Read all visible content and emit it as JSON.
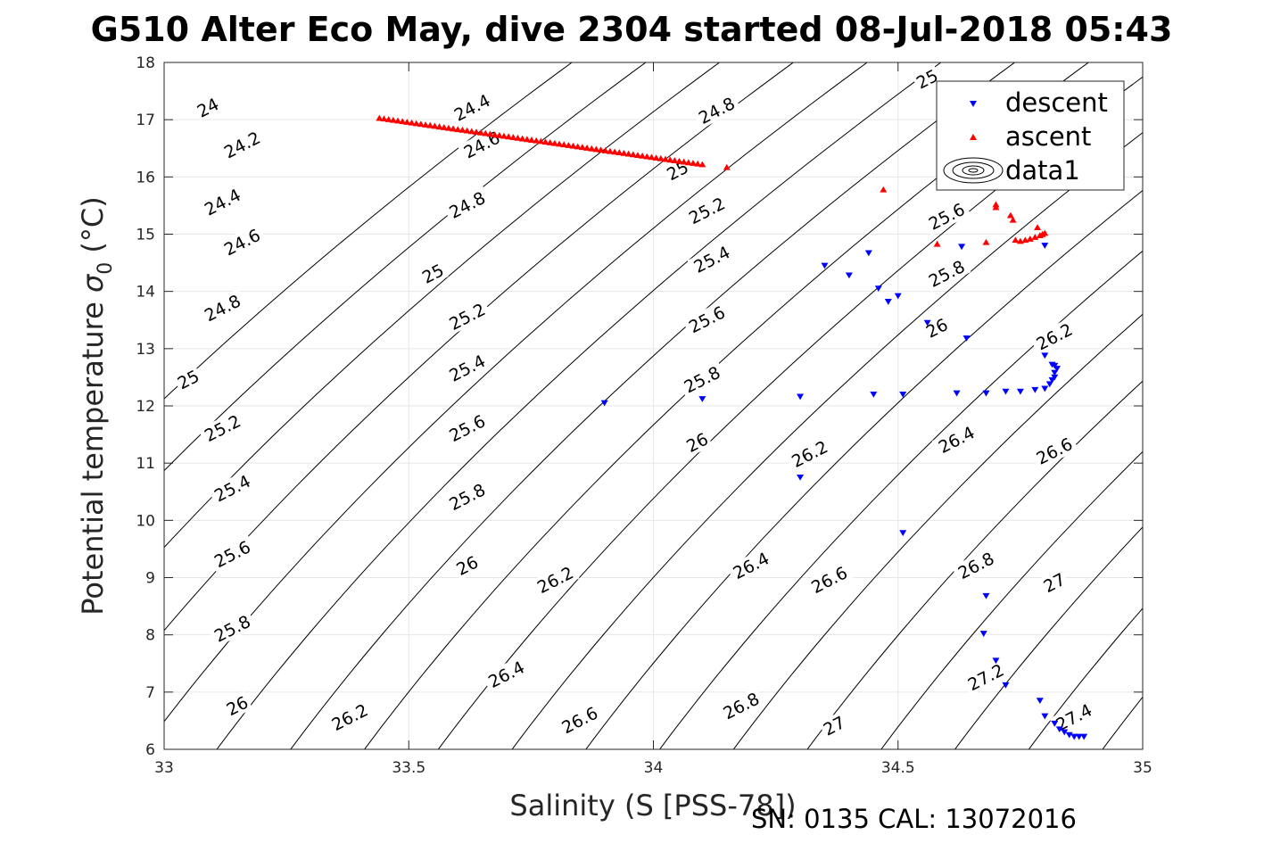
{
  "chart_data": {
    "type": "scatter",
    "title": "G510 Alter Eco May, dive 2304 started 08-Jul-2018 05:43",
    "xlabel": "Salinity (S [PSS-78])",
    "ylabel_main": "Potential temperature ",
    "ylabel_sigma": "σ",
    "ylabel_sub": "0",
    "ylabel_unit": " (°C)",
    "footnote": "SN: 0135  CAL: 13072016",
    "xlim": [
      33,
      35
    ],
    "ylim": [
      6,
      18
    ],
    "grid": true,
    "xticks": [
      "33",
      "33.5",
      "34",
      "34.5",
      "35"
    ],
    "yticks": [
      "6",
      "7",
      "8",
      "9",
      "10",
      "11",
      "12",
      "13",
      "14",
      "15",
      "16",
      "17",
      "18"
    ],
    "legend": {
      "placement": "top-right",
      "entries": [
        "descent",
        "ascent",
        "data1"
      ]
    },
    "colors": {
      "descent": "#0000ff",
      "ascent": "#ff0000",
      "contour": "#000000",
      "grid": "#e6e6e6"
    },
    "contour_levels": [
      "24",
      "24.2",
      "24.4",
      "24.6",
      "24.8",
      "25",
      "25.2",
      "25.4",
      "25.6",
      "25.8",
      "26",
      "26.2",
      "26.4",
      "26.6",
      "26.8",
      "27",
      "27.2",
      "27.4"
    ],
    "contour_labels": [
      {
        "text": "24",
        "x": 33.09,
        "y": 17.2
      },
      {
        "text": "24.2",
        "x": 33.16,
        "y": 16.55
      },
      {
        "text": "24.4",
        "x": 33.12,
        "y": 15.55
      },
      {
        "text": "24.6",
        "x": 33.16,
        "y": 14.85
      },
      {
        "text": "24.8",
        "x": 33.12,
        "y": 13.7
      },
      {
        "text": "25",
        "x": 33.05,
        "y": 12.45
      },
      {
        "text": "25.2",
        "x": 33.12,
        "y": 11.6
      },
      {
        "text": "25.4",
        "x": 33.14,
        "y": 10.55
      },
      {
        "text": "25.6",
        "x": 33.14,
        "y": 9.4
      },
      {
        "text": "25.8",
        "x": 33.14,
        "y": 8.1
      },
      {
        "text": "26",
        "x": 33.15,
        "y": 6.75
      },
      {
        "text": "24.4",
        "x": 33.63,
        "y": 17.2
      },
      {
        "text": "24.6",
        "x": 33.65,
        "y": 16.55
      },
      {
        "text": "24.8",
        "x": 33.62,
        "y": 15.5
      },
      {
        "text": "25",
        "x": 33.55,
        "y": 14.3
      },
      {
        "text": "25.2",
        "x": 33.62,
        "y": 13.55
      },
      {
        "text": "25.4",
        "x": 33.62,
        "y": 12.65
      },
      {
        "text": "25.6",
        "x": 33.62,
        "y": 11.6
      },
      {
        "text": "25.8",
        "x": 33.62,
        "y": 10.4
      },
      {
        "text": "26",
        "x": 33.62,
        "y": 9.2
      },
      {
        "text": "26.2",
        "x": 33.38,
        "y": 6.55
      },
      {
        "text": "24.8",
        "x": 34.13,
        "y": 17.15
      },
      {
        "text": "25",
        "x": 34.05,
        "y": 16.1
      },
      {
        "text": "25.2",
        "x": 34.11,
        "y": 15.4
      },
      {
        "text": "25.4",
        "x": 34.12,
        "y": 14.55
      },
      {
        "text": "25.6",
        "x": 34.11,
        "y": 13.5
      },
      {
        "text": "25.8",
        "x": 34.1,
        "y": 12.45
      },
      {
        "text": "26",
        "x": 34.09,
        "y": 11.35
      },
      {
        "text": "26.2",
        "x": 33.8,
        "y": 8.95
      },
      {
        "text": "26.4",
        "x": 33.7,
        "y": 7.3
      },
      {
        "text": "26.6",
        "x": 33.85,
        "y": 6.5
      },
      {
        "text": "26.4",
        "x": 34.2,
        "y": 9.2
      },
      {
        "text": "26.2",
        "x": 34.32,
        "y": 11.15
      },
      {
        "text": "26.6",
        "x": 34.36,
        "y": 8.95
      },
      {
        "text": "26.8",
        "x": 34.18,
        "y": 6.75
      },
      {
        "text": "27",
        "x": 34.37,
        "y": 6.4
      },
      {
        "text": "25",
        "x": 34.56,
        "y": 17.7
      },
      {
        "text": "25.6",
        "x": 34.6,
        "y": 15.3
      },
      {
        "text": "25.8",
        "x": 34.6,
        "y": 14.3
      },
      {
        "text": "26",
        "x": 34.58,
        "y": 13.35
      },
      {
        "text": "26.2",
        "x": 34.82,
        "y": 13.2
      },
      {
        "text": "26.4",
        "x": 34.62,
        "y": 11.4
      },
      {
        "text": "26.6",
        "x": 34.82,
        "y": 11.2
      },
      {
        "text": "26.8",
        "x": 34.66,
        "y": 9.2
      },
      {
        "text": "27",
        "x": 34.82,
        "y": 8.9
      },
      {
        "text": "27.2",
        "x": 34.68,
        "y": 7.25
      },
      {
        "text": "27.4",
        "x": 34.86,
        "y": 6.55
      }
    ],
    "series": [
      {
        "name": "descent",
        "marker": "down-triangle",
        "color": "#0000ff",
        "points": [
          [
            33.9,
            12.05
          ],
          [
            34.1,
            12.12
          ],
          [
            34.3,
            12.16
          ],
          [
            34.3,
            10.75
          ],
          [
            34.35,
            14.45
          ],
          [
            34.4,
            14.28
          ],
          [
            34.44,
            14.67
          ],
          [
            34.45,
            12.2
          ],
          [
            34.46,
            14.05
          ],
          [
            34.48,
            13.82
          ],
          [
            34.5,
            13.92
          ],
          [
            34.51,
            12.2
          ],
          [
            34.51,
            9.78
          ],
          [
            34.56,
            13.45
          ],
          [
            34.62,
            12.22
          ],
          [
            34.63,
            14.78
          ],
          [
            34.64,
            13.18
          ],
          [
            34.68,
            12.22
          ],
          [
            34.72,
            12.25
          ],
          [
            34.75,
            12.25
          ],
          [
            34.78,
            12.28
          ],
          [
            34.8,
            12.3
          ],
          [
            34.8,
            14.8
          ],
          [
            34.81,
            12.38
          ],
          [
            34.815,
            12.45
          ],
          [
            34.82,
            12.5
          ],
          [
            34.82,
            12.58
          ],
          [
            34.825,
            12.65
          ],
          [
            34.82,
            12.7
          ],
          [
            34.815,
            12.72
          ],
          [
            34.8,
            12.88
          ],
          [
            34.68,
            8.68
          ],
          [
            34.675,
            8.02
          ],
          [
            34.7,
            7.55
          ],
          [
            34.72,
            7.12
          ],
          [
            34.79,
            6.85
          ],
          [
            34.8,
            6.58
          ],
          [
            34.82,
            6.45
          ],
          [
            34.83,
            6.35
          ],
          [
            34.84,
            6.3
          ],
          [
            34.85,
            6.25
          ],
          [
            34.86,
            6.22
          ],
          [
            34.87,
            6.22
          ],
          [
            34.88,
            6.22
          ]
        ]
      },
      {
        "name": "ascent",
        "marker": "up-triangle",
        "color": "#ff0000",
        "line_from": [
          33.44,
          17.03
        ],
        "line_to": [
          34.1,
          16.22
        ],
        "points": [
          [
            34.15,
            16.17
          ],
          [
            34.47,
            15.78
          ],
          [
            34.58,
            14.83
          ],
          [
            34.68,
            14.86
          ],
          [
            34.7,
            15.47
          ],
          [
            34.7,
            15.52
          ],
          [
            34.73,
            15.33
          ],
          [
            34.735,
            15.25
          ],
          [
            34.74,
            14.9
          ],
          [
            34.75,
            14.88
          ],
          [
            34.76,
            14.9
          ],
          [
            34.77,
            14.92
          ],
          [
            34.78,
            14.95
          ],
          [
            34.785,
            15.12
          ],
          [
            34.79,
            14.98
          ],
          [
            34.8,
            15.02
          ],
          [
            34.795,
            15.0
          ]
        ]
      }
    ]
  }
}
